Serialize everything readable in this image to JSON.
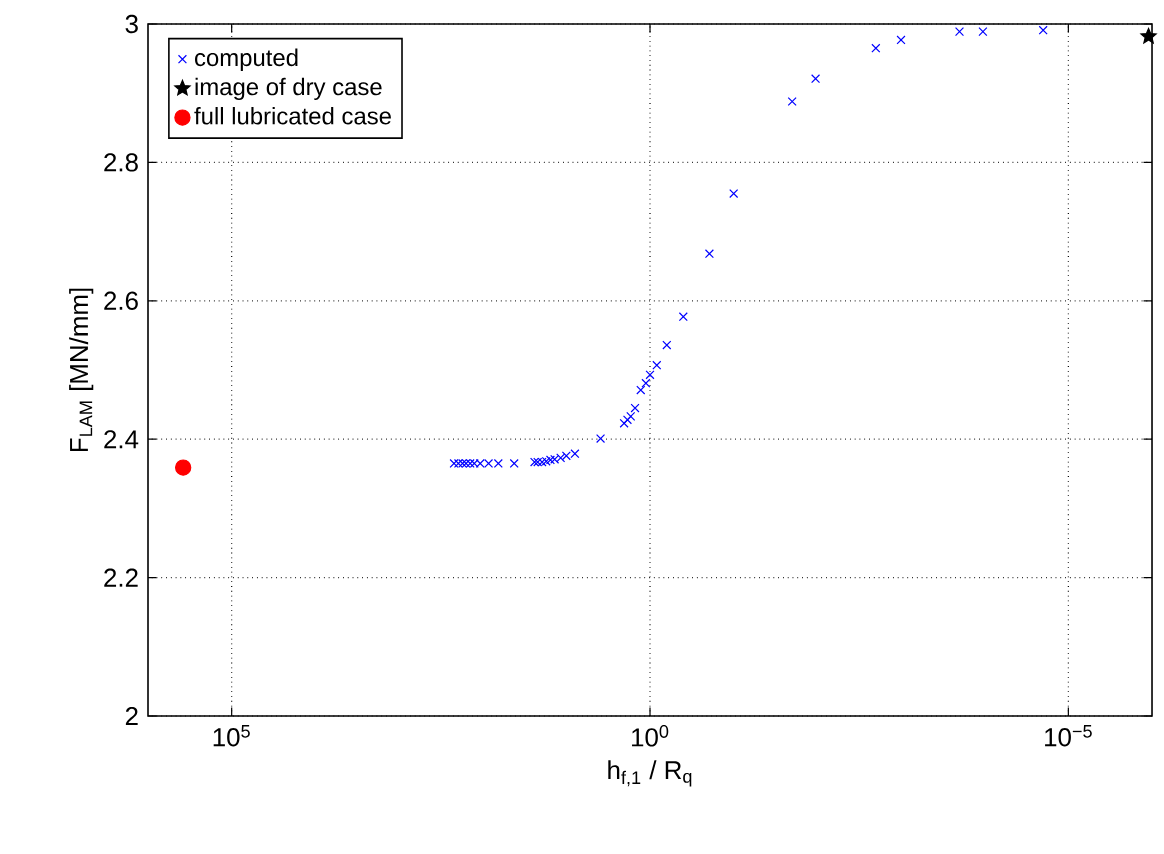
{
  "chart_data": {
    "type": "scatter",
    "xlabel": "h$_{f,1}$ / R$_{q}$",
    "ylabel": "F$_{LAM}$ [MN/mm]",
    "log": "x",
    "grid": true,
    "legend": "top left",
    "xlim": [
      1000000.0,
      1e-06
    ],
    "ylim": [
      2,
      3
    ],
    "xticks": [
      {
        "value": 100000.0,
        "label": "10$^{5}$"
      },
      {
        "value": 1,
        "label": "10$^{0}$"
      },
      {
        "value": 1e-05,
        "label": "10$^{−5}$"
      }
    ],
    "yticks": [
      2,
      2.2,
      2.4,
      2.6,
      2.8,
      3
    ],
    "series": [
      {
        "name": "computed",
        "color": "#0000ff",
        "marker": "cross",
        "x": [
          220,
          195,
          174,
          158,
          141,
          126,
          107,
          85,
          65,
          42,
          24,
          22,
          19.5,
          17.4,
          15.5,
          13.8,
          11.7,
          10,
          7.9,
          3.9,
          2.04,
          1.86,
          1.7,
          1.51,
          1.29,
          1.12,
          1.0,
          0.83,
          0.63,
          0.4,
          0.195,
          0.1,
          0.02,
          0.0105,
          0.002,
          0.001,
          0.0002,
          0.000105,
          2e-05
        ],
        "values": [
          2.365,
          2.365,
          2.365,
          2.365,
          2.365,
          2.365,
          2.365,
          2.365,
          2.365,
          2.365,
          2.367,
          2.367,
          2.367,
          2.368,
          2.37,
          2.371,
          2.373,
          2.376,
          2.379,
          2.401,
          2.423,
          2.428,
          2.433,
          2.445,
          2.471,
          2.481,
          2.493,
          2.507,
          2.536,
          2.577,
          2.668,
          2.755,
          2.888,
          2.921,
          2.965,
          2.977,
          2.989,
          2.989,
          2.991
        ]
      },
      {
        "name": "image of dry case",
        "color": "#000000",
        "marker": "star",
        "x": [
          1.1e-06
        ],
        "values": [
          2.982
        ]
      },
      {
        "name": "full lubricated case",
        "color": "#ff0000",
        "marker": "circle",
        "x": [
          380000.0
        ],
        "values": [
          2.359
        ]
      }
    ]
  }
}
